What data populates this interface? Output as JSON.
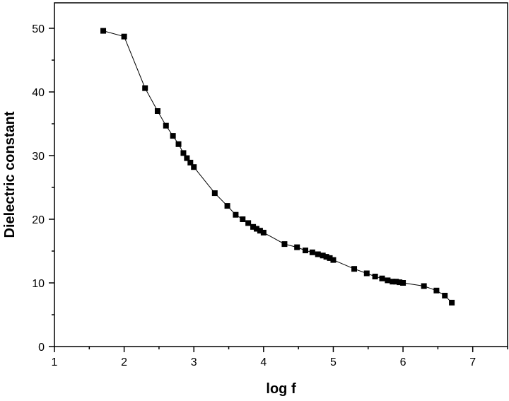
{
  "chart_data": {
    "type": "scatter",
    "title": "",
    "xlabel": "log f",
    "ylabel": "Dielectric constant",
    "xlim": [
      1,
      7.5
    ],
    "ylim": [
      0,
      54
    ],
    "xticks": [
      1,
      2,
      3,
      4,
      5,
      6,
      7
    ],
    "yticks": [
      0,
      10,
      20,
      30,
      40,
      50
    ],
    "grid": false,
    "legend": "none",
    "marker": "square",
    "line": true,
    "color": "#000000",
    "series": [
      {
        "points": [
          [
            1.7,
            49.6
          ],
          [
            2.0,
            48.7
          ],
          [
            2.3,
            40.6
          ],
          [
            2.48,
            37.0
          ],
          [
            2.6,
            34.7
          ],
          [
            2.7,
            33.1
          ],
          [
            2.78,
            31.8
          ],
          [
            2.85,
            30.4
          ],
          [
            2.9,
            29.6
          ],
          [
            2.95,
            28.9
          ],
          [
            3.0,
            28.2
          ],
          [
            3.3,
            24.1
          ],
          [
            3.48,
            22.1
          ],
          [
            3.6,
            20.7
          ],
          [
            3.7,
            20.0
          ],
          [
            3.78,
            19.4
          ],
          [
            3.85,
            18.8
          ],
          [
            3.9,
            18.5
          ],
          [
            3.95,
            18.2
          ],
          [
            4.0,
            17.9
          ],
          [
            4.3,
            16.1
          ],
          [
            4.48,
            15.6
          ],
          [
            4.6,
            15.1
          ],
          [
            4.7,
            14.8
          ],
          [
            4.78,
            14.5
          ],
          [
            4.85,
            14.3
          ],
          [
            4.9,
            14.1
          ],
          [
            4.95,
            13.9
          ],
          [
            5.0,
            13.6
          ],
          [
            5.3,
            12.2
          ],
          [
            5.48,
            11.5
          ],
          [
            5.6,
            11.0
          ],
          [
            5.7,
            10.7
          ],
          [
            5.78,
            10.4
          ],
          [
            5.85,
            10.2
          ],
          [
            5.9,
            10.2
          ],
          [
            5.95,
            10.1
          ],
          [
            6.0,
            10.0
          ],
          [
            6.3,
            9.5
          ],
          [
            6.48,
            8.8
          ],
          [
            6.6,
            8.0
          ],
          [
            6.7,
            6.9
          ]
        ]
      }
    ]
  }
}
